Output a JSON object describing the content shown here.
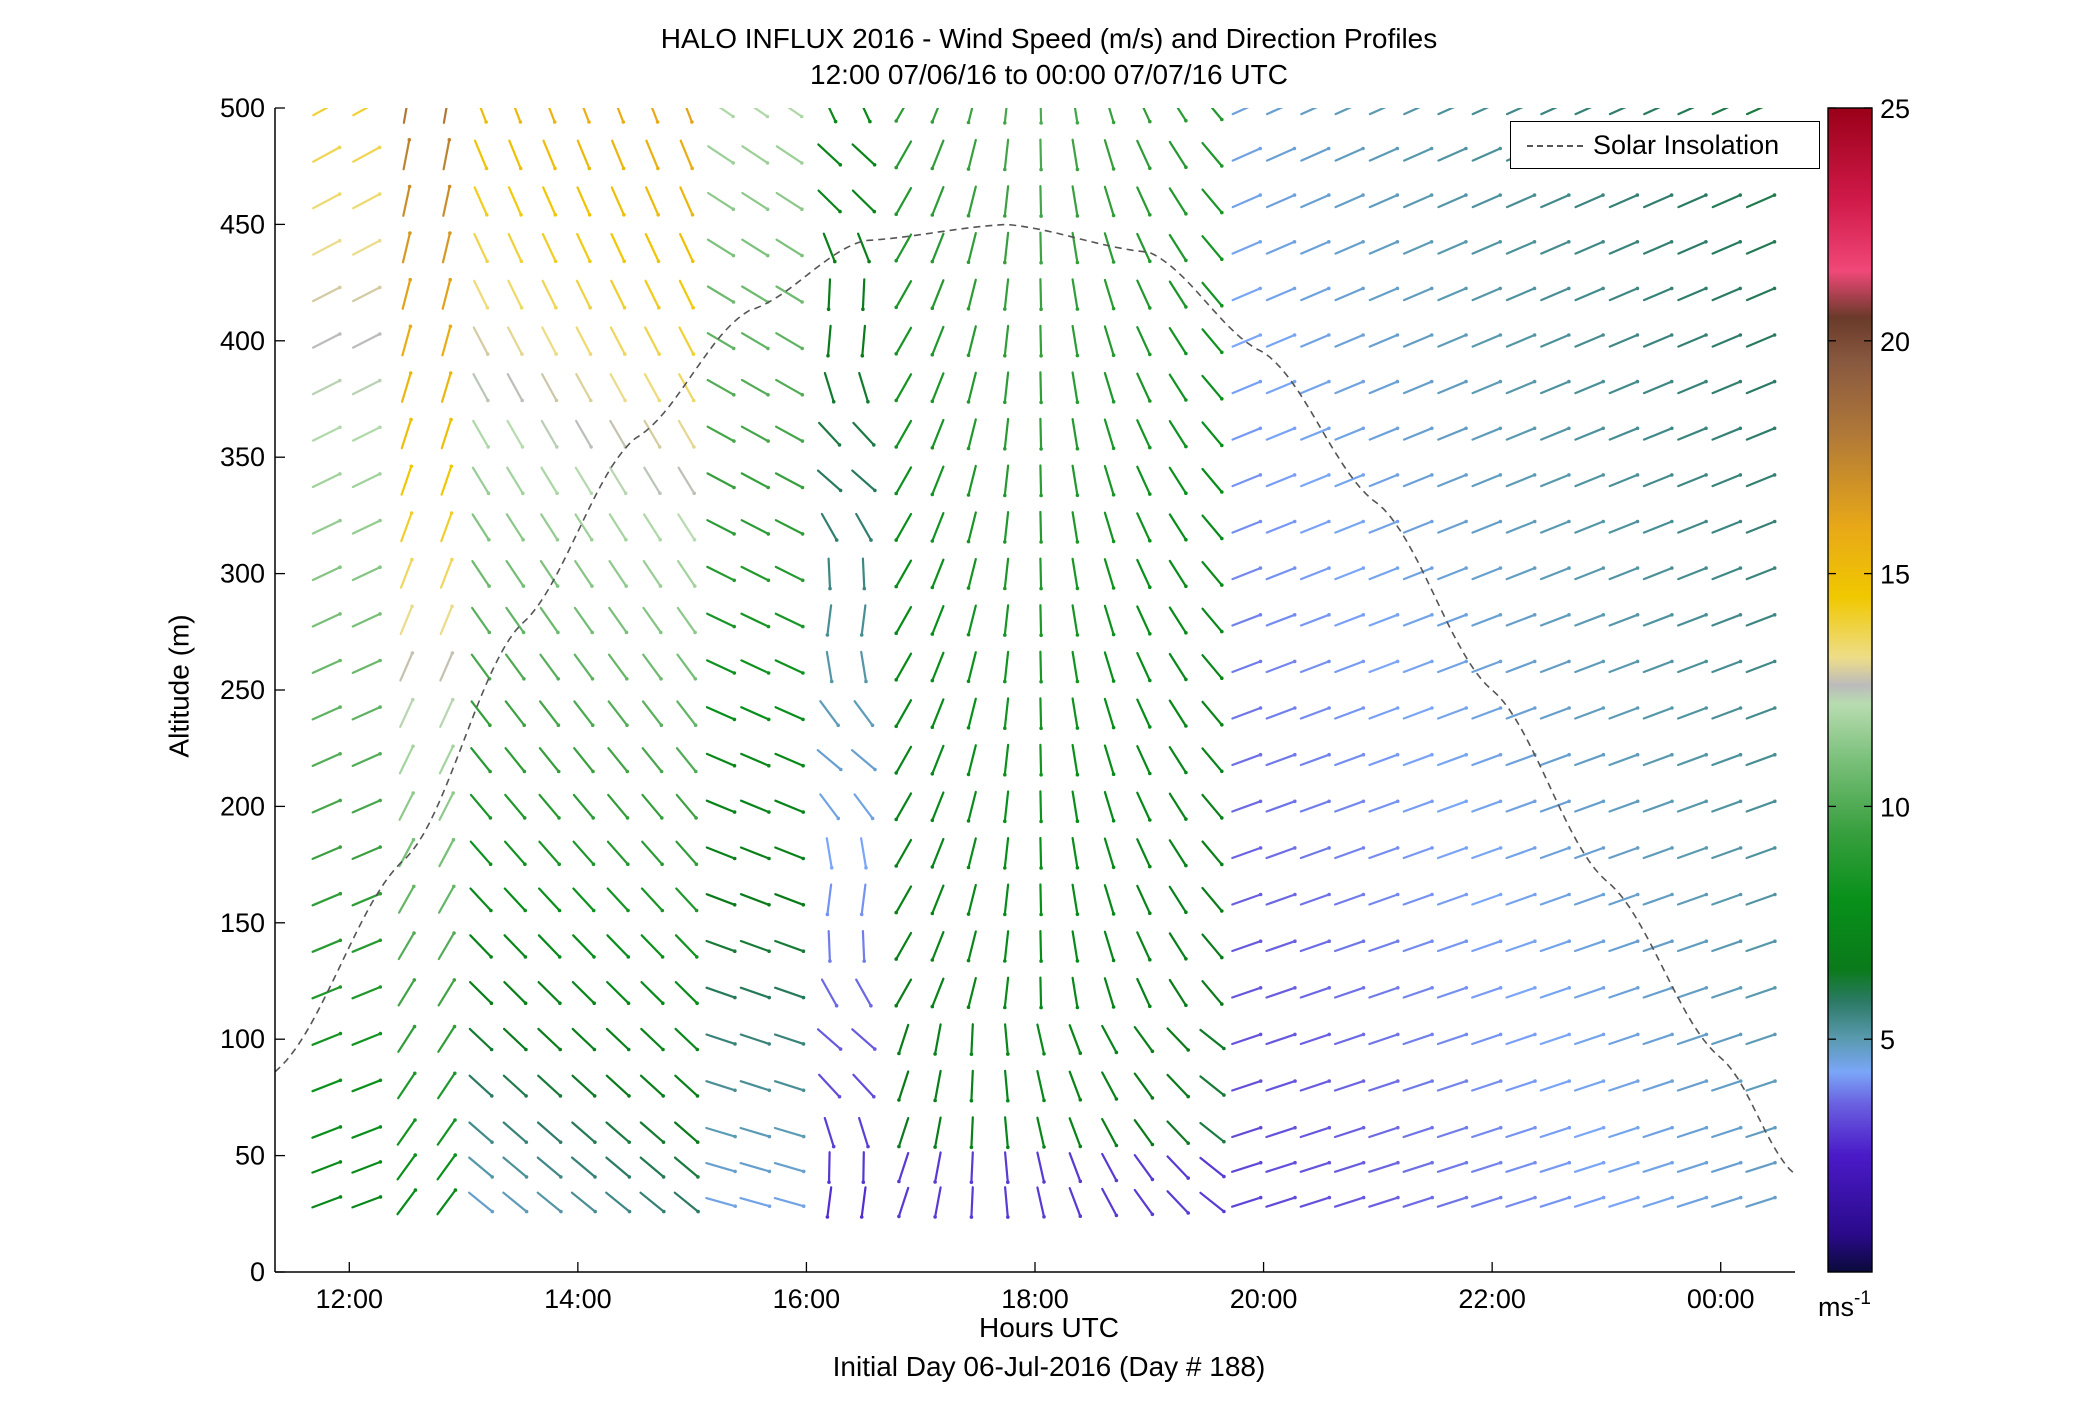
{
  "chart_data": {
    "type": "wind-barb-profile",
    "title": "HALO INFLUX 2016 - Wind Speed (m/s) and Direction Profiles",
    "subtitle": "12:00 07/06/16 to 00:00 07/07/16  UTC",
    "xlabel": "Hours UTC",
    "xlabel2": "Initial Day 06-Jul-2016 (Day # 188)",
    "ylabel": "Altitude (m)",
    "x_hours_range": [
      11.35,
      24.65
    ],
    "x_ticks": [
      12,
      14,
      16,
      18,
      20,
      22,
      24
    ],
    "x_tick_labels": [
      "12:00",
      "14:00",
      "16:00",
      "18:00",
      "20:00",
      "22:00",
      "00:00"
    ],
    "ylim": [
      0,
      500
    ],
    "y_ticks": [
      0,
      50,
      100,
      150,
      200,
      250,
      300,
      350,
      400,
      450,
      500
    ],
    "y_tick_labels": [
      "0",
      "50",
      "100",
      "150",
      "200",
      "250",
      "300",
      "350",
      "400",
      "450",
      "500"
    ],
    "colorbar": {
      "range": [
        0,
        25
      ],
      "ticks": [
        5,
        10,
        15,
        20,
        25
      ],
      "tick_labels": [
        "5",
        "10",
        "15",
        "20",
        "25"
      ],
      "unit": "ms",
      "unit_exponent": "-1"
    },
    "legend": {
      "entries": [
        "Solar Insolation"
      ],
      "placement": "top-right"
    },
    "solar_insolation_curve": {
      "peak_hour": 17.75,
      "peak_altitude": 450,
      "points": [
        [
          11.35,
          86
        ],
        [
          12.5,
          178
        ],
        [
          13.5,
          278
        ],
        [
          14.5,
          358
        ],
        [
          15.5,
          413
        ],
        [
          16.5,
          443
        ],
        [
          17.75,
          450
        ],
        [
          19.0,
          438
        ],
        [
          20.0,
          395
        ],
        [
          21.0,
          330
        ],
        [
          22.0,
          250
        ],
        [
          23.0,
          168
        ],
        [
          24.0,
          92
        ],
        [
          24.65,
          42
        ]
      ]
    },
    "barb_field": {
      "times_hours": [
        11.8,
        12.15,
        12.5,
        12.85,
        13.15,
        13.45,
        13.75,
        14.05,
        14.35,
        14.65,
        14.95,
        15.25,
        15.55,
        15.85,
        16.2,
        16.5,
        16.85,
        17.15,
        17.45,
        17.75,
        18.05,
        18.35,
        18.65,
        18.95,
        19.25,
        19.55,
        19.85,
        20.15,
        20.45,
        20.75,
        21.05,
        21.35,
        21.65,
        21.95,
        22.25,
        22.55,
        22.85,
        23.15,
        23.45,
        23.75,
        24.05,
        24.35
      ],
      "altitudes_m": [
        30,
        45,
        60,
        80,
        100,
        120,
        140,
        160,
        180,
        200,
        220,
        240,
        260,
        280,
        300,
        320,
        340,
        360,
        380,
        400,
        420,
        440,
        460,
        480,
        500
      ],
      "note": "Barb direction and speed follow the plotted regimes: southerly/southwesterly flow 12:00-16:00 speeding up with height, weak variable flow near 16:30, northerly 17:00-19:30, westerly increasing after 20:00."
    }
  }
}
